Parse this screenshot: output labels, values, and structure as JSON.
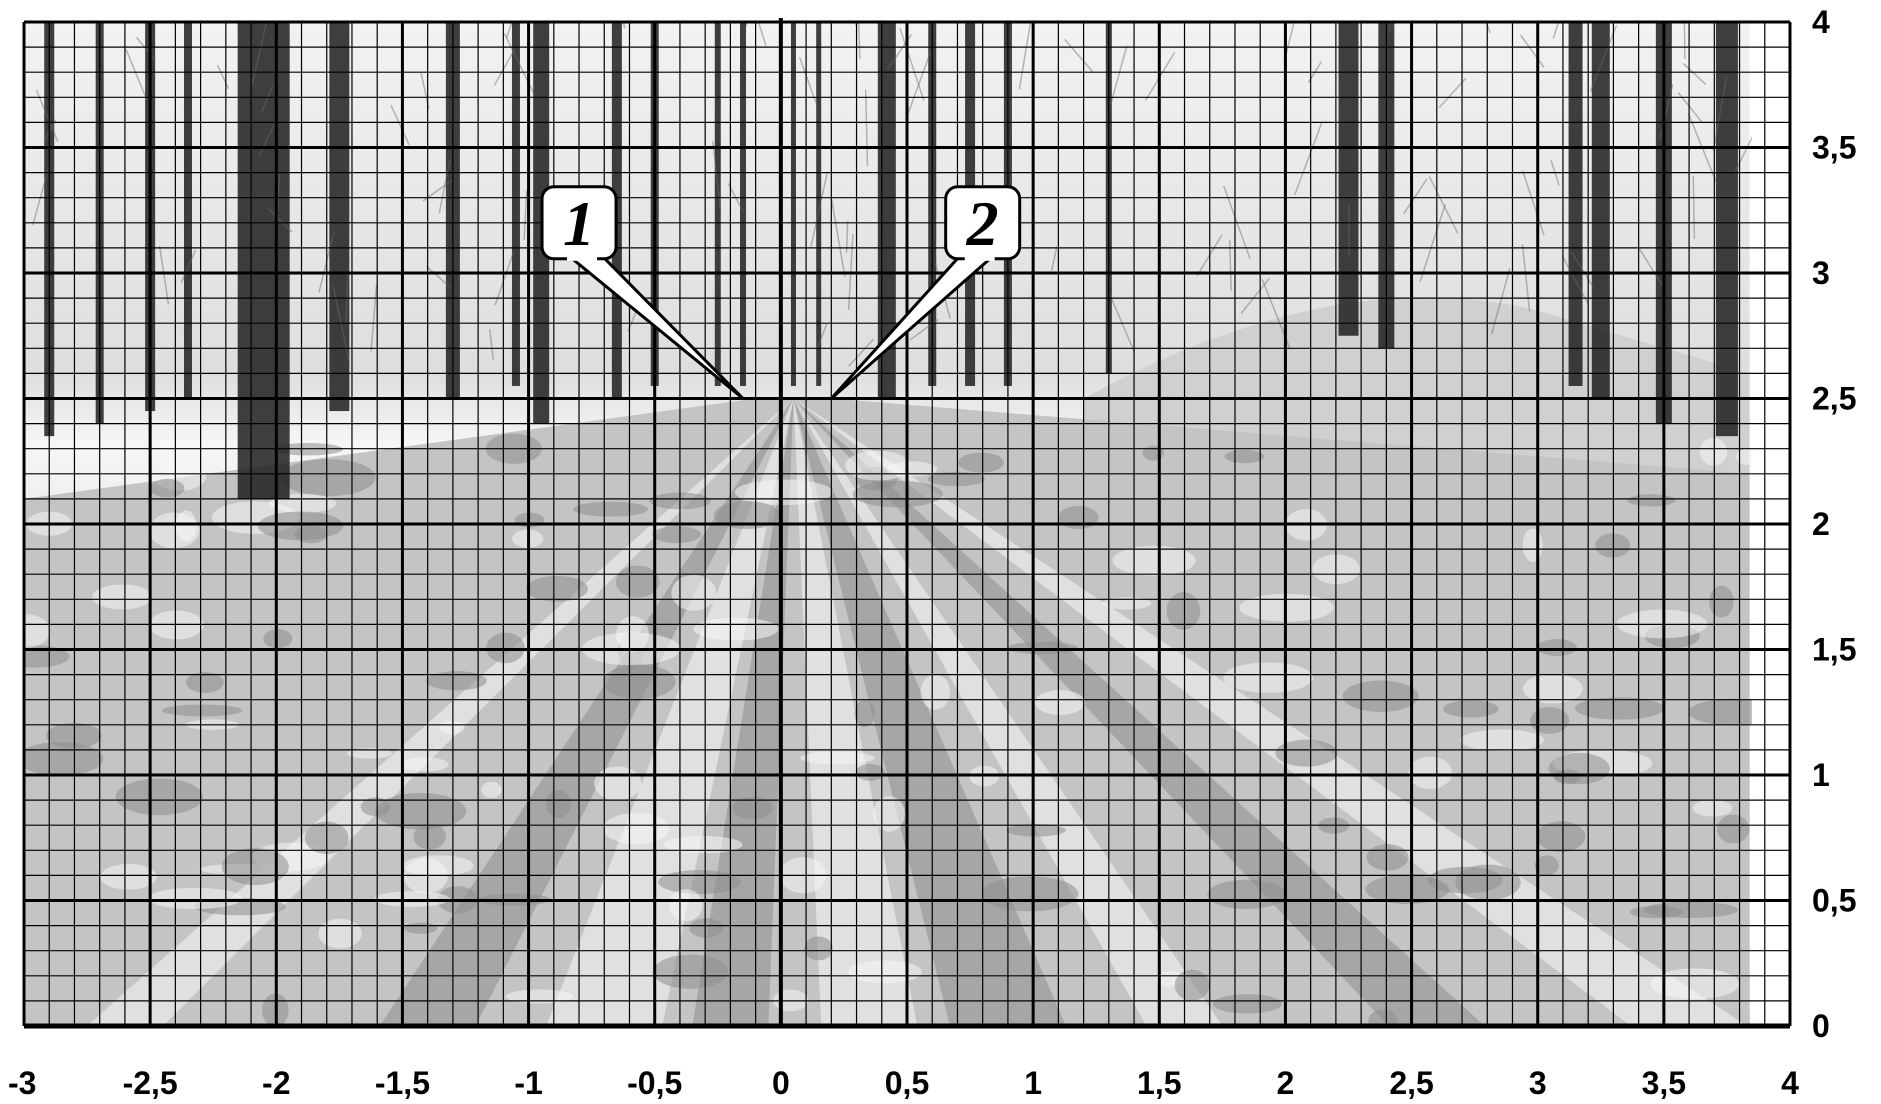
{
  "chart_data": {
    "type": "scatter",
    "title": "",
    "xlabel": "",
    "ylabel": "",
    "xlim": [
      -3,
      4
    ],
    "ylim": [
      0,
      4
    ],
    "x_ticks": [
      "-3",
      "-2,5",
      "-2",
      "-1,5",
      "-1",
      "-0,5",
      "0",
      "0,5",
      "1",
      "1,5",
      "2",
      "2,5",
      "3",
      "3,5",
      "4"
    ],
    "y_ticks": [
      "0",
      "0,5",
      "1",
      "1,5",
      "2",
      "2,5",
      "3",
      "3,5",
      "4"
    ],
    "major_grid_step": 0.5,
    "minor_grid_step": 0.1,
    "grid": true,
    "background": "black-and-white photo of a snowy forest road with vanishing point near the origin",
    "callouts": [
      {
        "label": "1",
        "box_center": [
          -0.8,
          3.2
        ],
        "points_to": [
          -0.15,
          2.5
        ]
      },
      {
        "label": "2",
        "box_center": [
          0.8,
          3.2
        ],
        "points_to": [
          0.2,
          2.5
        ]
      }
    ],
    "colors": {
      "grid": "#000000",
      "sky": "#ececec",
      "snow_light": "#f4f4f4",
      "snow_shadow": "#a8a8a8",
      "tree_dark": "#1e1e1e"
    }
  }
}
